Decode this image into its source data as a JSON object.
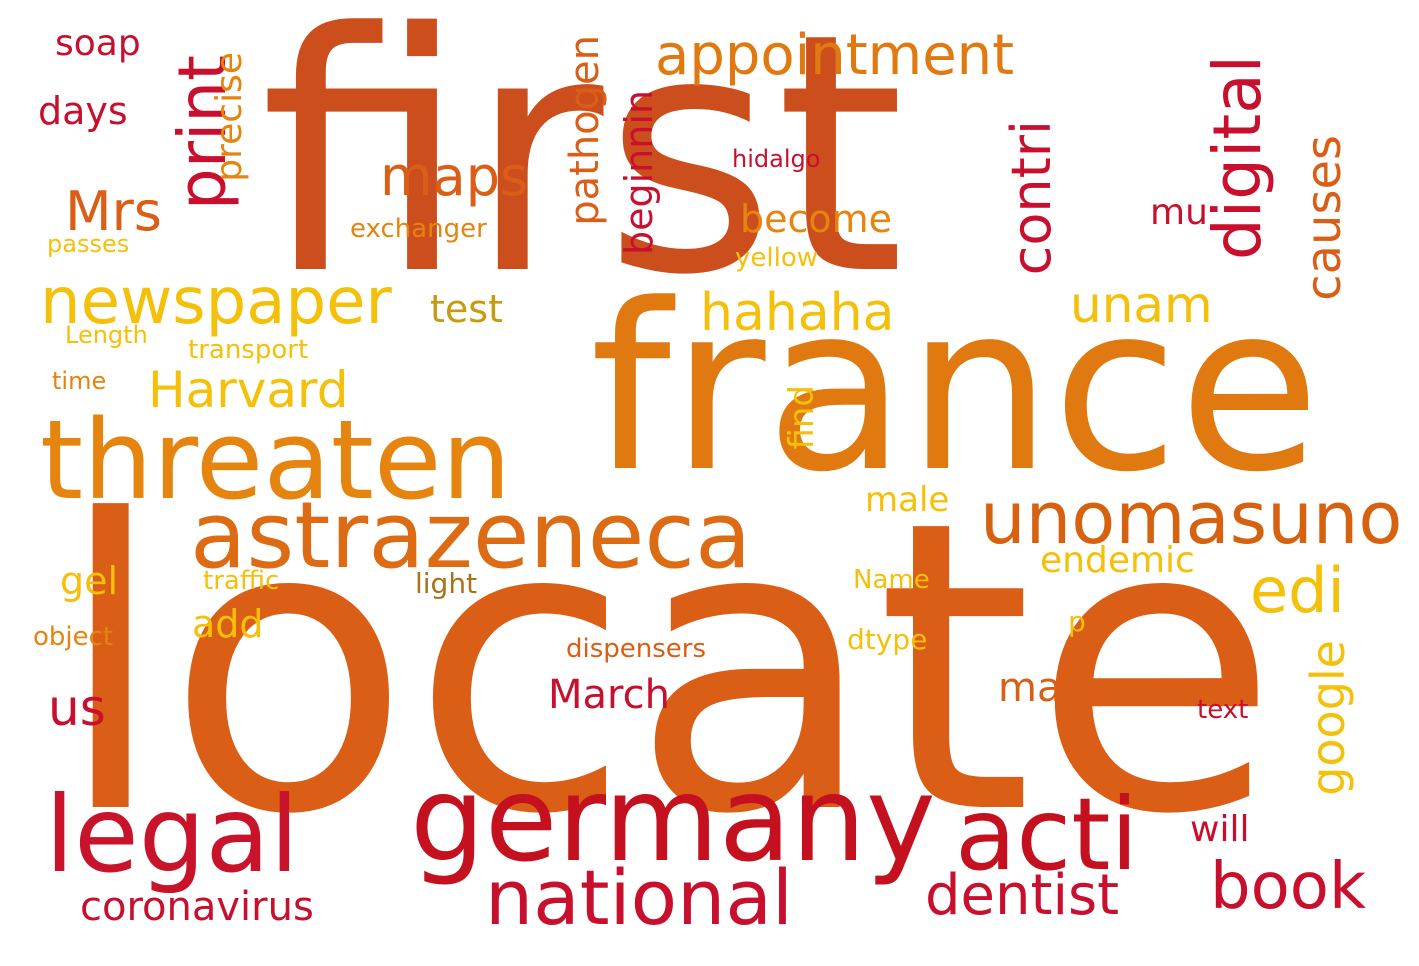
{
  "words": [
    {
      "text": "first",
      "color": "#CC4E1C",
      "rotate": false
    },
    {
      "text": "locate",
      "color": "#DB5E17",
      "rotate": false
    },
    {
      "text": "france",
      "color": "#E07A10",
      "rotate": false
    },
    {
      "text": "threaten",
      "color": "#E5840E",
      "rotate": false
    },
    {
      "text": "astrazeneca",
      "color": "#DC6B14",
      "rotate": false
    },
    {
      "text": "germany",
      "color": "#C4101F",
      "rotate": false
    },
    {
      "text": "legal",
      "color": "#C8132A",
      "rotate": false
    },
    {
      "text": "acti",
      "color": "#C5101F",
      "rotate": false
    },
    {
      "text": "national",
      "color": "#C8102E",
      "rotate": false
    },
    {
      "text": "unomasuno",
      "color": "#D6620F",
      "rotate": false
    },
    {
      "text": "newspaper",
      "color": "#F4C00A",
      "rotate": false
    },
    {
      "text": "appointment",
      "color": "#E07A10",
      "rotate": false
    },
    {
      "text": "print",
      "color": "#C8102E",
      "rotate": true
    },
    {
      "text": "digital",
      "color": "#C8102E",
      "rotate": true
    },
    {
      "text": "contri",
      "color": "#C8102E",
      "rotate": true
    },
    {
      "text": "causes",
      "color": "#DB5E17",
      "rotate": true
    },
    {
      "text": "book",
      "color": "#C8102E",
      "rotate": false
    },
    {
      "text": "dentist",
      "color": "#C8102E",
      "rotate": false
    },
    {
      "text": "coronavirus",
      "color": "#C8102E",
      "rotate": false
    },
    {
      "text": "Harvard",
      "color": "#F4C00A",
      "rotate": false
    },
    {
      "text": "hahaha",
      "color": "#F4C00A",
      "rotate": false
    },
    {
      "text": "unam",
      "color": "#F4C00A",
      "rotate": false
    },
    {
      "text": "edi",
      "color": "#F4C00A",
      "rotate": false
    },
    {
      "text": "maps",
      "color": "#DB5E17",
      "rotate": false
    },
    {
      "text": "Mrs",
      "color": "#DB5E17",
      "rotate": false
    },
    {
      "text": "google",
      "color": "#F4C00A",
      "rotate": true
    },
    {
      "text": "pathogen",
      "color": "#DB5E17",
      "rotate": true
    },
    {
      "text": "beginnin",
      "color": "#C8102E",
      "rotate": true
    },
    {
      "text": "precise",
      "color": "#E5840E",
      "rotate": true
    },
    {
      "text": "us",
      "color": "#C8102E",
      "rotate": false
    },
    {
      "text": "March",
      "color": "#C8102E",
      "rotate": false
    },
    {
      "text": "mark",
      "color": "#DB5E17",
      "rotate": false
    },
    {
      "text": "days",
      "color": "#C8102E",
      "rotate": false
    },
    {
      "text": "soap",
      "color": "#C8102E",
      "rotate": false
    },
    {
      "text": "become",
      "color": "#E5840E",
      "rotate": false
    },
    {
      "text": "test",
      "color": "#C89A12",
      "rotate": false
    },
    {
      "text": "gel",
      "color": "#F4C00A",
      "rotate": false
    },
    {
      "text": "add",
      "color": "#F4C00A",
      "rotate": false
    },
    {
      "text": "endemic",
      "color": "#F4C00A",
      "rotate": false
    },
    {
      "text": "will",
      "color": "#C8102E",
      "rotate": false
    },
    {
      "text": "male",
      "color": "#F4C00A",
      "rotate": false
    },
    {
      "text": "find",
      "color": "#F4C00A",
      "rotate": true
    },
    {
      "text": "mu",
      "color": "#C8102E",
      "rotate": false
    },
    {
      "text": "hidalgo",
      "color": "#C8102E",
      "rotate": false
    },
    {
      "text": "exchanger",
      "color": "#E5840E",
      "rotate": false
    },
    {
      "text": "yellow",
      "color": "#F4C00A",
      "rotate": false
    },
    {
      "text": "passes",
      "color": "#F4C00A",
      "rotate": false
    },
    {
      "text": "Length",
      "color": "#F4C00A",
      "rotate": false
    },
    {
      "text": "transport",
      "color": "#F4C00A",
      "rotate": false
    },
    {
      "text": "time",
      "color": "#E5840E",
      "rotate": false
    },
    {
      "text": "traffic",
      "color": "#F4C00A",
      "rotate": false
    },
    {
      "text": "light",
      "color": "#A8731A",
      "rotate": false
    },
    {
      "text": "Name",
      "color": "#F4C00A",
      "rotate": false
    },
    {
      "text": "object",
      "color": "#E5840E",
      "rotate": false
    },
    {
      "text": "dispensers",
      "color": "#DB5E17",
      "rotate": false
    },
    {
      "text": "dtype",
      "color": "#F4C00A",
      "rotate": false
    },
    {
      "text": "p",
      "color": "#F4C00A",
      "rotate": false
    },
    {
      "text": "text",
      "color": "#C8102E",
      "rotate": false
    }
  ]
}
